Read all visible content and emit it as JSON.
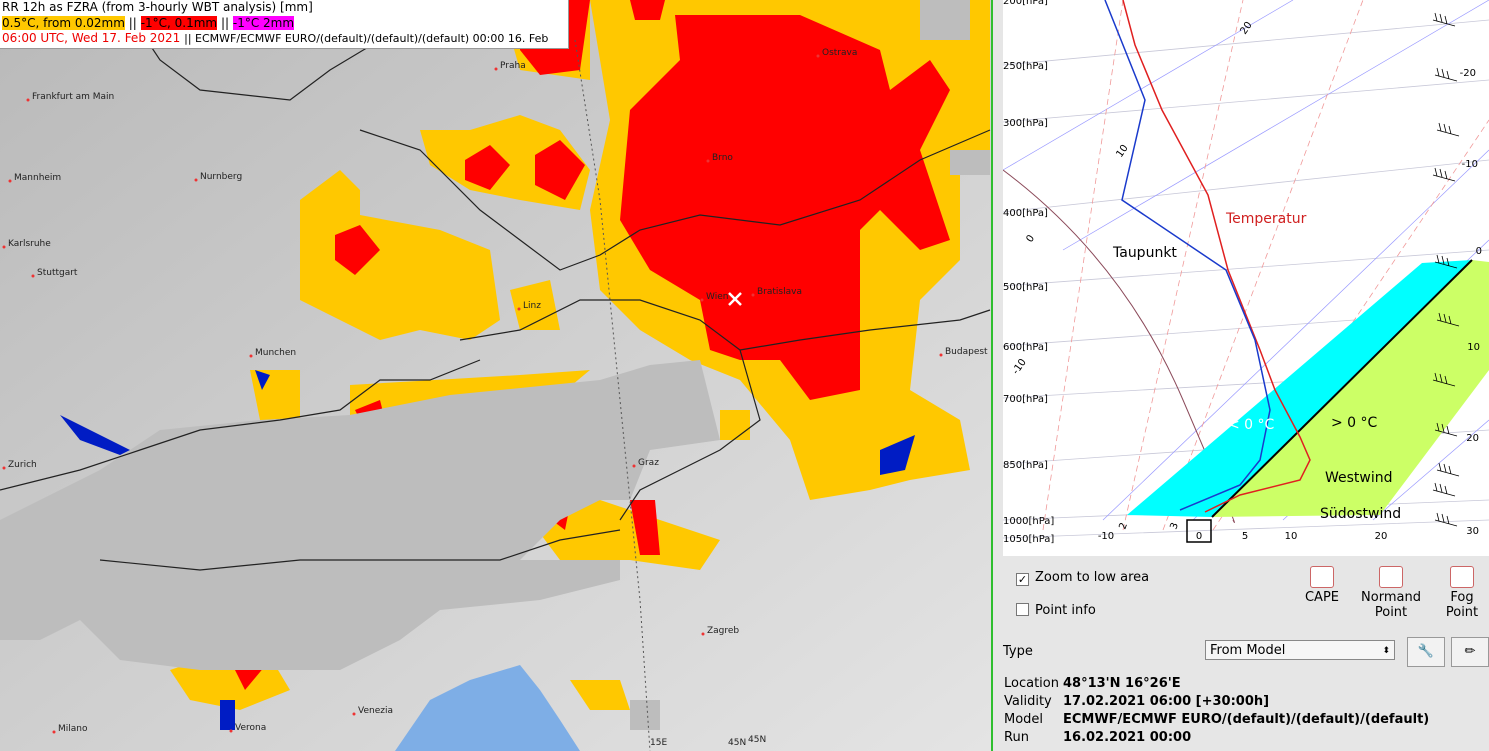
{
  "map": {
    "title": "RR 12h as FZRA (from 3-hourly WBT analysis) [mm]",
    "legend": [
      "0.5°C, from 0.02mm",
      "-1°C, 0.1mm",
      "-1°C 2mm"
    ],
    "separator": "||",
    "time": "06:00 UTC, Wed 17. Feb 2021",
    "model_info": "|| ECMWF/ECMWF EURO/(default)/(default)/(default) 00:00 16. Feb",
    "cities": [
      "Praha",
      "Ostrava",
      "Frankfurt am Main",
      "Brno",
      "Nurnberg",
      "Mannheim",
      "Karlsruhe",
      "Stuttgart",
      "Linz",
      "Wien",
      "Bratislava",
      "Munchen",
      "Budapest",
      "Zurich",
      "Graz",
      "Zagreb",
      "Venezia",
      "Milano",
      "Verona"
    ],
    "grid_labels": [
      "15E",
      "45N",
      "45N"
    ]
  },
  "sounding": {
    "pressure_labels": [
      "200[hPa]",
      "250[hPa]",
      "300[hPa]",
      "400[hPa]",
      "500[hPa]",
      "600[hPa]",
      "700[hPa]",
      "850[hPa]",
      "1000[hPa]",
      "1050[hPa]"
    ],
    "bottom_labels": [
      "-10",
      "0",
      "5",
      "10",
      "20"
    ],
    "right_labels": [
      "-20",
      "-10",
      "0",
      "10",
      "20",
      "30"
    ],
    "isotherm_labels": [
      "20",
      "10",
      "0",
      "-10",
      "2",
      "3"
    ],
    "annotations": [
      "Temperatur",
      "Taupunkt",
      "< 0 °C",
      "> 0 °C",
      "Westwind",
      "Südostwind"
    ]
  },
  "controls": {
    "zoom_checkbox": "Zoom to low area",
    "point_info_checkbox": "Point info",
    "buttons": [
      [
        "CAPE"
      ],
      [
        "Normand",
        "Point"
      ],
      [
        "Fog",
        "Point"
      ]
    ],
    "type_label": "Type",
    "type_value": "From Model"
  },
  "info": {
    "rows": [
      [
        "Location",
        "48°13'N 16°26'E"
      ],
      [
        "Validity",
        "17.02.2021 06:00 [+30:00h]"
      ],
      [
        "Model",
        "ECMWF/ECMWF EURO/(default)/(default)/(default)"
      ],
      [
        "Run",
        "16.02.2021 00:00"
      ]
    ]
  }
}
